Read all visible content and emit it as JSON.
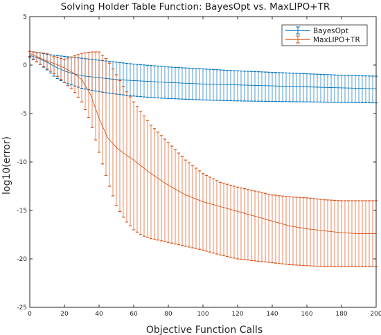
{
  "chart_data": {
    "type": "line",
    "title": "Solving Holder Table Function: BayesOpt vs. MaxLIPO+TR",
    "xlabel": "Objective Function Calls",
    "ylabel": "log10(error)",
    "xlim": [
      0,
      200
    ],
    "ylim": [
      -25,
      5
    ],
    "xticks": [
      0,
      20,
      40,
      60,
      80,
      100,
      120,
      140,
      160,
      180,
      200
    ],
    "yticks": [
      5,
      0,
      -5,
      -10,
      -15,
      -20,
      -25
    ],
    "grid": false,
    "legend_position": "top-right",
    "error_bars": true,
    "series": [
      {
        "name": "BayesOpt",
        "color": "#0072BD",
        "x": [
          0,
          5,
          10,
          15,
          20,
          25,
          30,
          40,
          50,
          60,
          70,
          80,
          100,
          120,
          140,
          160,
          180,
          200
        ],
        "mean": [
          1.0,
          0.7,
          0.3,
          -0.2,
          -0.6,
          -0.9,
          -1.1,
          -1.3,
          -1.5,
          -1.6,
          -1.7,
          -1.8,
          -1.95,
          -2.05,
          -2.15,
          -2.25,
          -2.35,
          -2.45
        ],
        "upper": [
          1.4,
          1.3,
          1.1,
          1.0,
          0.9,
          0.8,
          0.7,
          0.5,
          0.3,
          0.1,
          -0.05,
          -0.2,
          -0.4,
          -0.6,
          -0.75,
          -0.9,
          -1.05,
          -1.15
        ],
        "lower": [
          0.8,
          0.2,
          -0.5,
          -1.3,
          -1.8,
          -2.1,
          -2.4,
          -2.75,
          -3.0,
          -3.2,
          -3.35,
          -3.45,
          -3.6,
          -3.7,
          -3.75,
          -3.8,
          -3.85,
          -3.9
        ]
      },
      {
        "name": "MaxLIPO+TR",
        "color": "#D95319",
        "x": [
          0,
          5,
          10,
          15,
          20,
          25,
          30,
          35,
          40,
          45,
          50,
          55,
          60,
          65,
          70,
          80,
          90,
          100,
          110,
          120,
          130,
          140,
          150,
          160,
          170,
          180,
          190,
          200
        ],
        "mean": [
          1.2,
          0.8,
          0.4,
          0.1,
          -0.3,
          -0.8,
          -1.5,
          -3.0,
          -5.5,
          -7.5,
          -8.5,
          -9.2,
          -9.8,
          -10.5,
          -11.2,
          -12.4,
          -13.4,
          -14.1,
          -14.6,
          -15.1,
          -15.6,
          -16.1,
          -16.6,
          -16.9,
          -17.1,
          -17.3,
          -17.4,
          -17.4
        ],
        "upper": [
          1.4,
          1.3,
          1.2,
          0.8,
          0.6,
          0.9,
          1.2,
          1.35,
          1.35,
          0.5,
          -1.0,
          -2.5,
          -3.8,
          -5.0,
          -6.2,
          -8.0,
          -9.8,
          -11.2,
          -12.1,
          -12.6,
          -13.0,
          -13.4,
          -13.6,
          -13.7,
          -13.9,
          -14.0,
          -14.0,
          -14.0
        ],
        "lower": [
          0.9,
          0.2,
          -0.4,
          -1.0,
          -1.8,
          -2.6,
          -3.8,
          -5.8,
          -9.0,
          -12.0,
          -14.5,
          -16.0,
          -17.0,
          -17.6,
          -17.9,
          -18.3,
          -18.7,
          -19.1,
          -19.6,
          -20.0,
          -20.2,
          -20.4,
          -20.6,
          -20.7,
          -20.8,
          -20.8,
          -20.8,
          -20.8
        ]
      }
    ]
  }
}
